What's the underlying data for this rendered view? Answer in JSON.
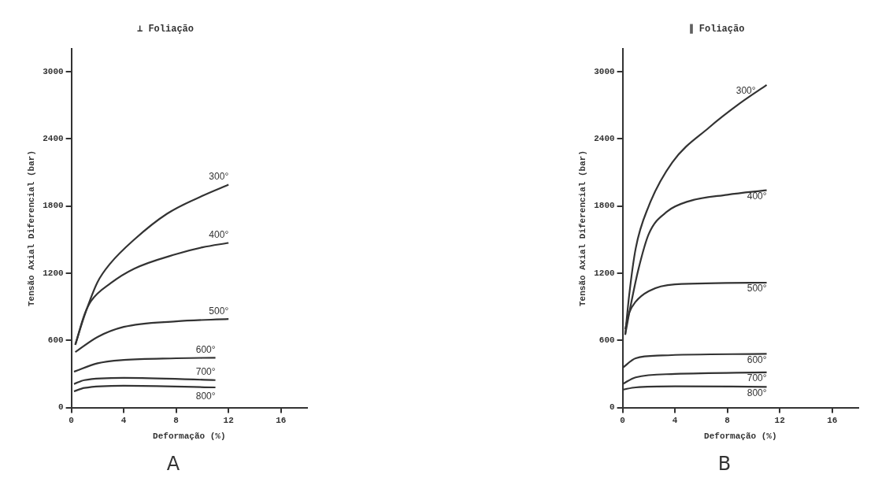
{
  "chart_data": [
    {
      "type": "line",
      "title": "⊥ Foliação",
      "xlabel": "Deformação (%)",
      "ylabel": "Tensão Axial Diferencial (bar)",
      "xlim": [
        0,
        18
      ],
      "xticks": [
        0,
        4,
        8,
        12,
        16
      ],
      "ylim": [
        0,
        3200
      ],
      "yticks": [
        0,
        600,
        1200,
        1800,
        2400,
        3000
      ],
      "marker": "none",
      "annotations": [
        "A"
      ],
      "series": [
        {
          "name": "300°",
          "color": "#333333",
          "x": [
            0.3,
            1,
            2,
            3,
            4.8,
            7.3,
            10,
            12
          ],
          "values": [
            560,
            820,
            1120,
            1290,
            1500,
            1730,
            1890,
            1990
          ]
        },
        {
          "name": "400°",
          "color": "#333333",
          "x": [
            0.3,
            1,
            1.5,
            3,
            4.8,
            8,
            10,
            12
          ],
          "values": [
            560,
            830,
            950,
            1110,
            1240,
            1370,
            1430,
            1470
          ]
        },
        {
          "name": "500°",
          "color": "#333333",
          "x": [
            0.3,
            2,
            4,
            8,
            12
          ],
          "values": [
            495,
            630,
            720,
            770,
            790
          ]
        },
        {
          "name": "600°",
          "color": "#333333",
          "x": [
            0.2,
            2,
            4,
            8,
            11
          ],
          "values": [
            320,
            395,
            425,
            440,
            445
          ]
        },
        {
          "name": "700°",
          "color": "#333333",
          "x": [
            0.2,
            1,
            4,
            11
          ],
          "values": [
            210,
            245,
            265,
            245
          ]
        },
        {
          "name": "800°",
          "color": "#333333",
          "x": [
            0.2,
            1,
            4,
            11
          ],
          "values": [
            145,
            175,
            195,
            180
          ]
        }
      ]
    },
    {
      "type": "line",
      "title": "∥ Foliação",
      "xlabel": "Deformação (%)",
      "ylabel": "Tensão Axial Diferencial (bar)",
      "xlim": [
        0,
        18
      ],
      "xticks": [
        0,
        4,
        8,
        12,
        16
      ],
      "ylim": [
        0,
        3200
      ],
      "yticks": [
        0,
        600,
        1200,
        1800,
        2400,
        3000
      ],
      "marker": "none",
      "annotations": [
        "B"
      ],
      "series": [
        {
          "name": "300°",
          "color": "#333333",
          "x": [
            0.2,
            0.5,
            1,
            2,
            3.8,
            6.6,
            9,
            11
          ],
          "values": [
            650,
            1000,
            1420,
            1800,
            2190,
            2500,
            2720,
            2880
          ]
        },
        {
          "name": "400°",
          "color": "#333333",
          "x": [
            0.2,
            0.6,
            1.2,
            2,
            3.4,
            5,
            8,
            11
          ],
          "values": [
            650,
            900,
            1230,
            1550,
            1750,
            1840,
            1900,
            1940
          ]
        },
        {
          "name": "500°",
          "color": "#333333",
          "x": [
            0.2,
            0.5,
            1,
            2,
            4,
            11
          ],
          "values": [
            700,
            845,
            945,
            1040,
            1100,
            1115
          ]
        },
        {
          "name": "600°",
          "color": "#333333",
          "x": [
            0,
            1,
            3,
            11
          ],
          "values": [
            355,
            440,
            465,
            480
          ]
        },
        {
          "name": "700°",
          "color": "#333333",
          "x": [
            0,
            1,
            4,
            11
          ],
          "values": [
            210,
            270,
            300,
            315
          ]
        },
        {
          "name": "800°",
          "color": "#333333",
          "x": [
            0,
            1,
            4,
            11
          ],
          "values": [
            160,
            180,
            190,
            185
          ]
        }
      ]
    }
  ]
}
